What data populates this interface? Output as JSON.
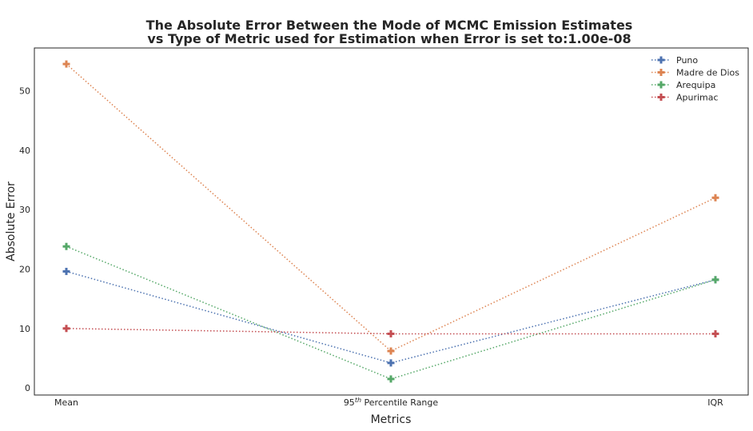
{
  "chart_data": {
    "type": "line",
    "title_line1": "The Absolute Error Between the Mode of MCMC Emission Estimates",
    "title_line2": "vs Type of Metric used for Estimation when Error is set to:1.00e-08",
    "xlabel": "Metrics",
    "ylabel": "Absolute Error",
    "categories": [
      "Mean",
      "95th Percentile Range",
      "IQR"
    ],
    "category_label_2_prefix": "95",
    "category_label_2_sup": "th",
    "category_label_2_suffix": "Percentile Range",
    "ylim": [
      -1.2,
      57.2
    ],
    "yticks": [
      0,
      10,
      20,
      30,
      40,
      50
    ],
    "grid": false,
    "legend_position": "top-right",
    "series": [
      {
        "name": "Puno",
        "color": "#4c72b0",
        "values": [
          19.6,
          4.2,
          18.2
        ]
      },
      {
        "name": "Madre de Dios",
        "color": "#dd8452",
        "values": [
          54.5,
          6.2,
          32.0
        ]
      },
      {
        "name": "Arequipa",
        "color": "#55a868",
        "values": [
          23.8,
          1.5,
          18.2
        ]
      },
      {
        "name": "Apurimac",
        "color": "#c44e52",
        "values": [
          10.0,
          9.1,
          9.1
        ]
      }
    ]
  }
}
